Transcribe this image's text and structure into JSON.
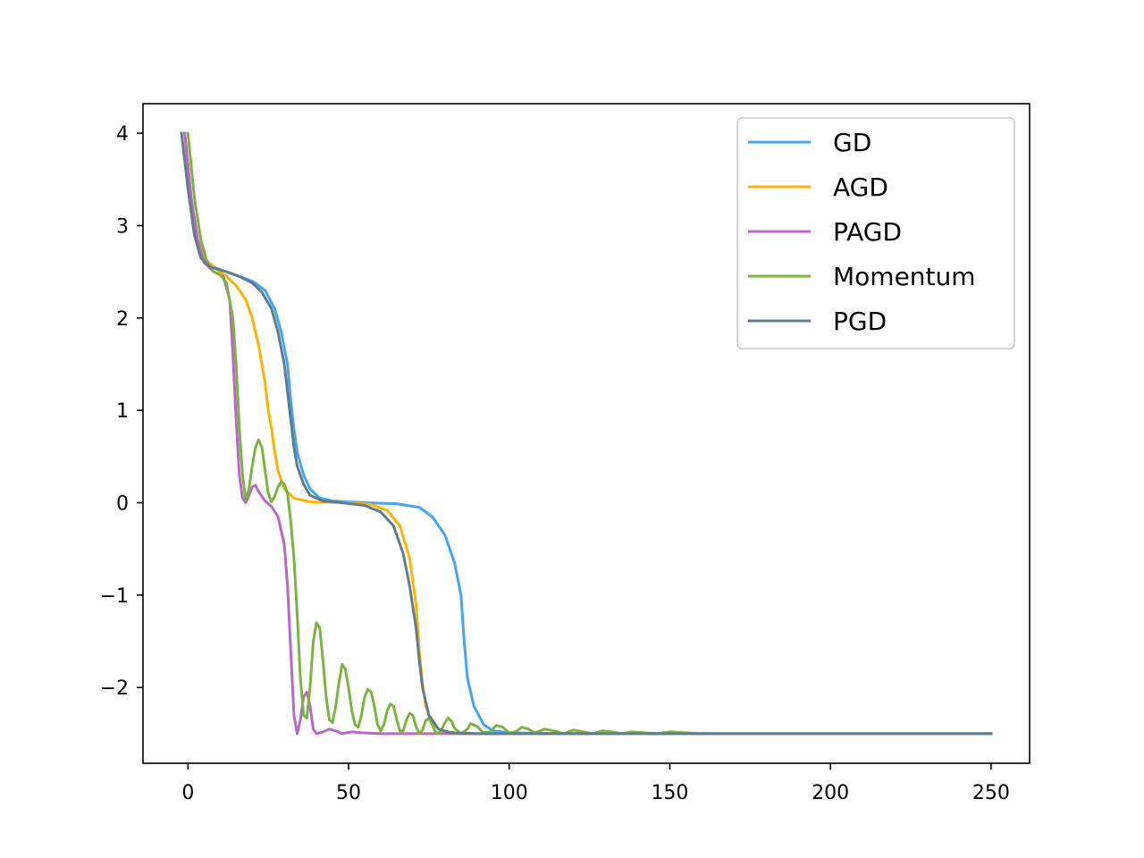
{
  "chart_data": {
    "type": "line",
    "title": "",
    "xlabel": "",
    "ylabel": "",
    "xlim": [
      -14,
      262
    ],
    "ylim": [
      -2.82,
      4.32
    ],
    "xticks": [
      0,
      50,
      100,
      150,
      200,
      250
    ],
    "yticks": [
      4,
      3,
      2,
      1,
      0,
      -1,
      -2
    ],
    "xtick_labels": [
      "0",
      "50",
      "100",
      "150",
      "200",
      "250"
    ],
    "ytick_labels": [
      "4",
      "3",
      "2",
      "1",
      "0",
      "−1",
      "−2"
    ],
    "grid": false,
    "legend_position": "top-right",
    "series": [
      {
        "name": "GD",
        "color": "#42a5f5",
        "points": [
          [
            -1,
            4.0
          ],
          [
            1,
            3.3
          ],
          [
            3,
            2.85
          ],
          [
            5,
            2.65
          ],
          [
            8,
            2.55
          ],
          [
            12,
            2.5
          ],
          [
            16,
            2.45
          ],
          [
            20,
            2.4
          ],
          [
            24,
            2.3
          ],
          [
            27,
            2.1
          ],
          [
            29,
            1.85
          ],
          [
            31,
            1.5
          ],
          [
            32,
            1.1
          ],
          [
            33,
            0.8
          ],
          [
            34,
            0.55
          ],
          [
            36,
            0.3
          ],
          [
            38,
            0.15
          ],
          [
            41,
            0.05
          ],
          [
            45,
            0.02
          ],
          [
            55,
            0.0
          ],
          [
            65,
            -0.01
          ],
          [
            72,
            -0.05
          ],
          [
            76,
            -0.15
          ],
          [
            80,
            -0.35
          ],
          [
            83,
            -0.65
          ],
          [
            85,
            -1.0
          ],
          [
            86,
            -1.5
          ],
          [
            87,
            -1.9
          ],
          [
            89,
            -2.2
          ],
          [
            92,
            -2.4
          ],
          [
            95,
            -2.47
          ],
          [
            100,
            -2.49
          ],
          [
            120,
            -2.5
          ],
          [
            250,
            -2.5
          ]
        ]
      },
      {
        "name": "AGD",
        "color": "#ffb300",
        "points": [
          [
            -1,
            4.0
          ],
          [
            1,
            3.3
          ],
          [
            3,
            2.85
          ],
          [
            5,
            2.65
          ],
          [
            8,
            2.55
          ],
          [
            12,
            2.45
          ],
          [
            15,
            2.35
          ],
          [
            18,
            2.2
          ],
          [
            20,
            2.0
          ],
          [
            22,
            1.7
          ],
          [
            24,
            1.3
          ],
          [
            25,
            1.0
          ],
          [
            26,
            0.8
          ],
          [
            27,
            0.55
          ],
          [
            28,
            0.35
          ],
          [
            30,
            0.15
          ],
          [
            33,
            0.05
          ],
          [
            38,
            0.01
          ],
          [
            50,
            0.0
          ],
          [
            57,
            -0.02
          ],
          [
            62,
            -0.08
          ],
          [
            66,
            -0.25
          ],
          [
            69,
            -0.6
          ],
          [
            71,
            -1.1
          ],
          [
            72,
            -1.6
          ],
          [
            73,
            -1.95
          ],
          [
            74,
            -2.2
          ],
          [
            76,
            -2.4
          ],
          [
            79,
            -2.47
          ],
          [
            85,
            -2.5
          ],
          [
            250,
            -2.5
          ]
        ]
      },
      {
        "name": "PAGD",
        "color": "#ba68c8",
        "points": [
          [
            -1,
            4.0
          ],
          [
            1,
            3.3
          ],
          [
            3,
            2.85
          ],
          [
            5,
            2.6
          ],
          [
            8,
            2.5
          ],
          [
            11,
            2.45
          ],
          [
            13,
            2.2
          ],
          [
            14,
            1.6
          ],
          [
            15,
            0.9
          ],
          [
            16,
            0.3
          ],
          [
            17,
            0.05
          ],
          [
            18,
            0.0
          ],
          [
            19,
            0.08
          ],
          [
            20,
            0.17
          ],
          [
            21,
            0.19
          ],
          [
            22,
            0.12
          ],
          [
            24,
            0.02
          ],
          [
            26,
            -0.04
          ],
          [
            28,
            -0.15
          ],
          [
            30,
            -0.45
          ],
          [
            31,
            -0.9
          ],
          [
            32,
            -1.6
          ],
          [
            33,
            -2.3
          ],
          [
            34,
            -2.5
          ],
          [
            35,
            -2.35
          ],
          [
            36,
            -2.1
          ],
          [
            37,
            -2.05
          ],
          [
            38,
            -2.2
          ],
          [
            39,
            -2.45
          ],
          [
            40,
            -2.5
          ],
          [
            42,
            -2.48
          ],
          [
            44,
            -2.45
          ],
          [
            46,
            -2.47
          ],
          [
            48,
            -2.5
          ],
          [
            51,
            -2.48
          ],
          [
            54,
            -2.49
          ],
          [
            60,
            -2.5
          ],
          [
            250,
            -2.5
          ]
        ]
      },
      {
        "name": "Momentum",
        "color": "#7cb342",
        "points": [
          [
            0,
            4.0
          ],
          [
            2,
            3.3
          ],
          [
            4,
            2.85
          ],
          [
            6,
            2.6
          ],
          [
            8,
            2.5
          ],
          [
            10,
            2.47
          ],
          [
            12,
            2.38
          ],
          [
            14,
            2.0
          ],
          [
            15,
            1.5
          ],
          [
            16,
            0.8
          ],
          [
            17,
            0.3
          ],
          [
            18,
            0.03
          ],
          [
            19,
            0.15
          ],
          [
            20,
            0.4
          ],
          [
            21,
            0.6
          ],
          [
            22,
            0.68
          ],
          [
            23,
            0.6
          ],
          [
            24,
            0.35
          ],
          [
            25,
            0.1
          ],
          [
            26,
            0.01
          ],
          [
            27,
            0.07
          ],
          [
            28,
            0.17
          ],
          [
            29,
            0.23
          ],
          [
            30,
            0.2
          ],
          [
            31,
            0.1
          ],
          [
            32,
            -0.2
          ],
          [
            33,
            -0.6
          ],
          [
            34,
            -1.2
          ],
          [
            35,
            -1.9
          ],
          [
            36,
            -2.3
          ],
          [
            37,
            -2.33
          ],
          [
            38,
            -2.0
          ],
          [
            39,
            -1.5
          ],
          [
            40,
            -1.3
          ],
          [
            41,
            -1.35
          ],
          [
            42,
            -1.7
          ],
          [
            43,
            -2.1
          ],
          [
            44,
            -2.35
          ],
          [
            45,
            -2.38
          ],
          [
            46,
            -2.2
          ],
          [
            47,
            -1.95
          ],
          [
            48,
            -1.75
          ],
          [
            49,
            -1.8
          ],
          [
            50,
            -2.0
          ],
          [
            51,
            -2.25
          ],
          [
            52,
            -2.4
          ],
          [
            53,
            -2.43
          ],
          [
            54,
            -2.3
          ],
          [
            55,
            -2.1
          ],
          [
            56,
            -2.02
          ],
          [
            57,
            -2.05
          ],
          [
            58,
            -2.2
          ],
          [
            59,
            -2.4
          ],
          [
            60,
            -2.47
          ],
          [
            61,
            -2.4
          ],
          [
            62,
            -2.25
          ],
          [
            63,
            -2.18
          ],
          [
            64,
            -2.2
          ],
          [
            65,
            -2.35
          ],
          [
            66,
            -2.47
          ],
          [
            67,
            -2.47
          ],
          [
            68,
            -2.35
          ],
          [
            69,
            -2.28
          ],
          [
            70,
            -2.3
          ],
          [
            71,
            -2.42
          ],
          [
            72,
            -2.5
          ],
          [
            73,
            -2.46
          ],
          [
            74,
            -2.36
          ],
          [
            75,
            -2.33
          ],
          [
            76,
            -2.4
          ],
          [
            77,
            -2.48
          ],
          [
            78,
            -2.5
          ],
          [
            79,
            -2.45
          ],
          [
            80,
            -2.38
          ],
          [
            81,
            -2.33
          ],
          [
            82,
            -2.36
          ],
          [
            83,
            -2.44
          ],
          [
            85,
            -2.5
          ],
          [
            87,
            -2.45
          ],
          [
            88,
            -2.39
          ],
          [
            90,
            -2.42
          ],
          [
            92,
            -2.49
          ],
          [
            94,
            -2.48
          ],
          [
            96,
            -2.41
          ],
          [
            98,
            -2.43
          ],
          [
            100,
            -2.49
          ],
          [
            102,
            -2.48
          ],
          [
            104,
            -2.43
          ],
          [
            106,
            -2.45
          ],
          [
            108,
            -2.49
          ],
          [
            111,
            -2.45
          ],
          [
            114,
            -2.47
          ],
          [
            117,
            -2.5
          ],
          [
            120,
            -2.46
          ],
          [
            123,
            -2.48
          ],
          [
            126,
            -2.5
          ],
          [
            129,
            -2.47
          ],
          [
            132,
            -2.48
          ],
          [
            135,
            -2.5
          ],
          [
            138,
            -2.48
          ],
          [
            142,
            -2.49
          ],
          [
            146,
            -2.5
          ],
          [
            150,
            -2.48
          ],
          [
            155,
            -2.49
          ],
          [
            160,
            -2.5
          ],
          [
            250,
            -2.5
          ]
        ]
      },
      {
        "name": "PGD",
        "color": "#607d8b",
        "points": [
          [
            -2,
            4.0
          ],
          [
            0,
            3.4
          ],
          [
            2,
            2.9
          ],
          [
            4,
            2.65
          ],
          [
            7,
            2.55
          ],
          [
            12,
            2.5
          ],
          [
            16,
            2.45
          ],
          [
            20,
            2.38
          ],
          [
            23,
            2.28
          ],
          [
            26,
            2.1
          ],
          [
            28,
            1.85
          ],
          [
            30,
            1.5
          ],
          [
            31,
            1.2
          ],
          [
            32,
            0.9
          ],
          [
            33,
            0.6
          ],
          [
            34,
            0.4
          ],
          [
            36,
            0.2
          ],
          [
            38,
            0.08
          ],
          [
            42,
            0.02
          ],
          [
            48,
            0.0
          ],
          [
            55,
            -0.03
          ],
          [
            60,
            -0.1
          ],
          [
            64,
            -0.25
          ],
          [
            67,
            -0.55
          ],
          [
            69,
            -0.9
          ],
          [
            71,
            -1.35
          ],
          [
            72,
            -1.7
          ],
          [
            73,
            -2.0
          ],
          [
            75,
            -2.3
          ],
          [
            78,
            -2.45
          ],
          [
            82,
            -2.49
          ],
          [
            90,
            -2.5
          ],
          [
            250,
            -2.5
          ]
        ]
      }
    ]
  }
}
